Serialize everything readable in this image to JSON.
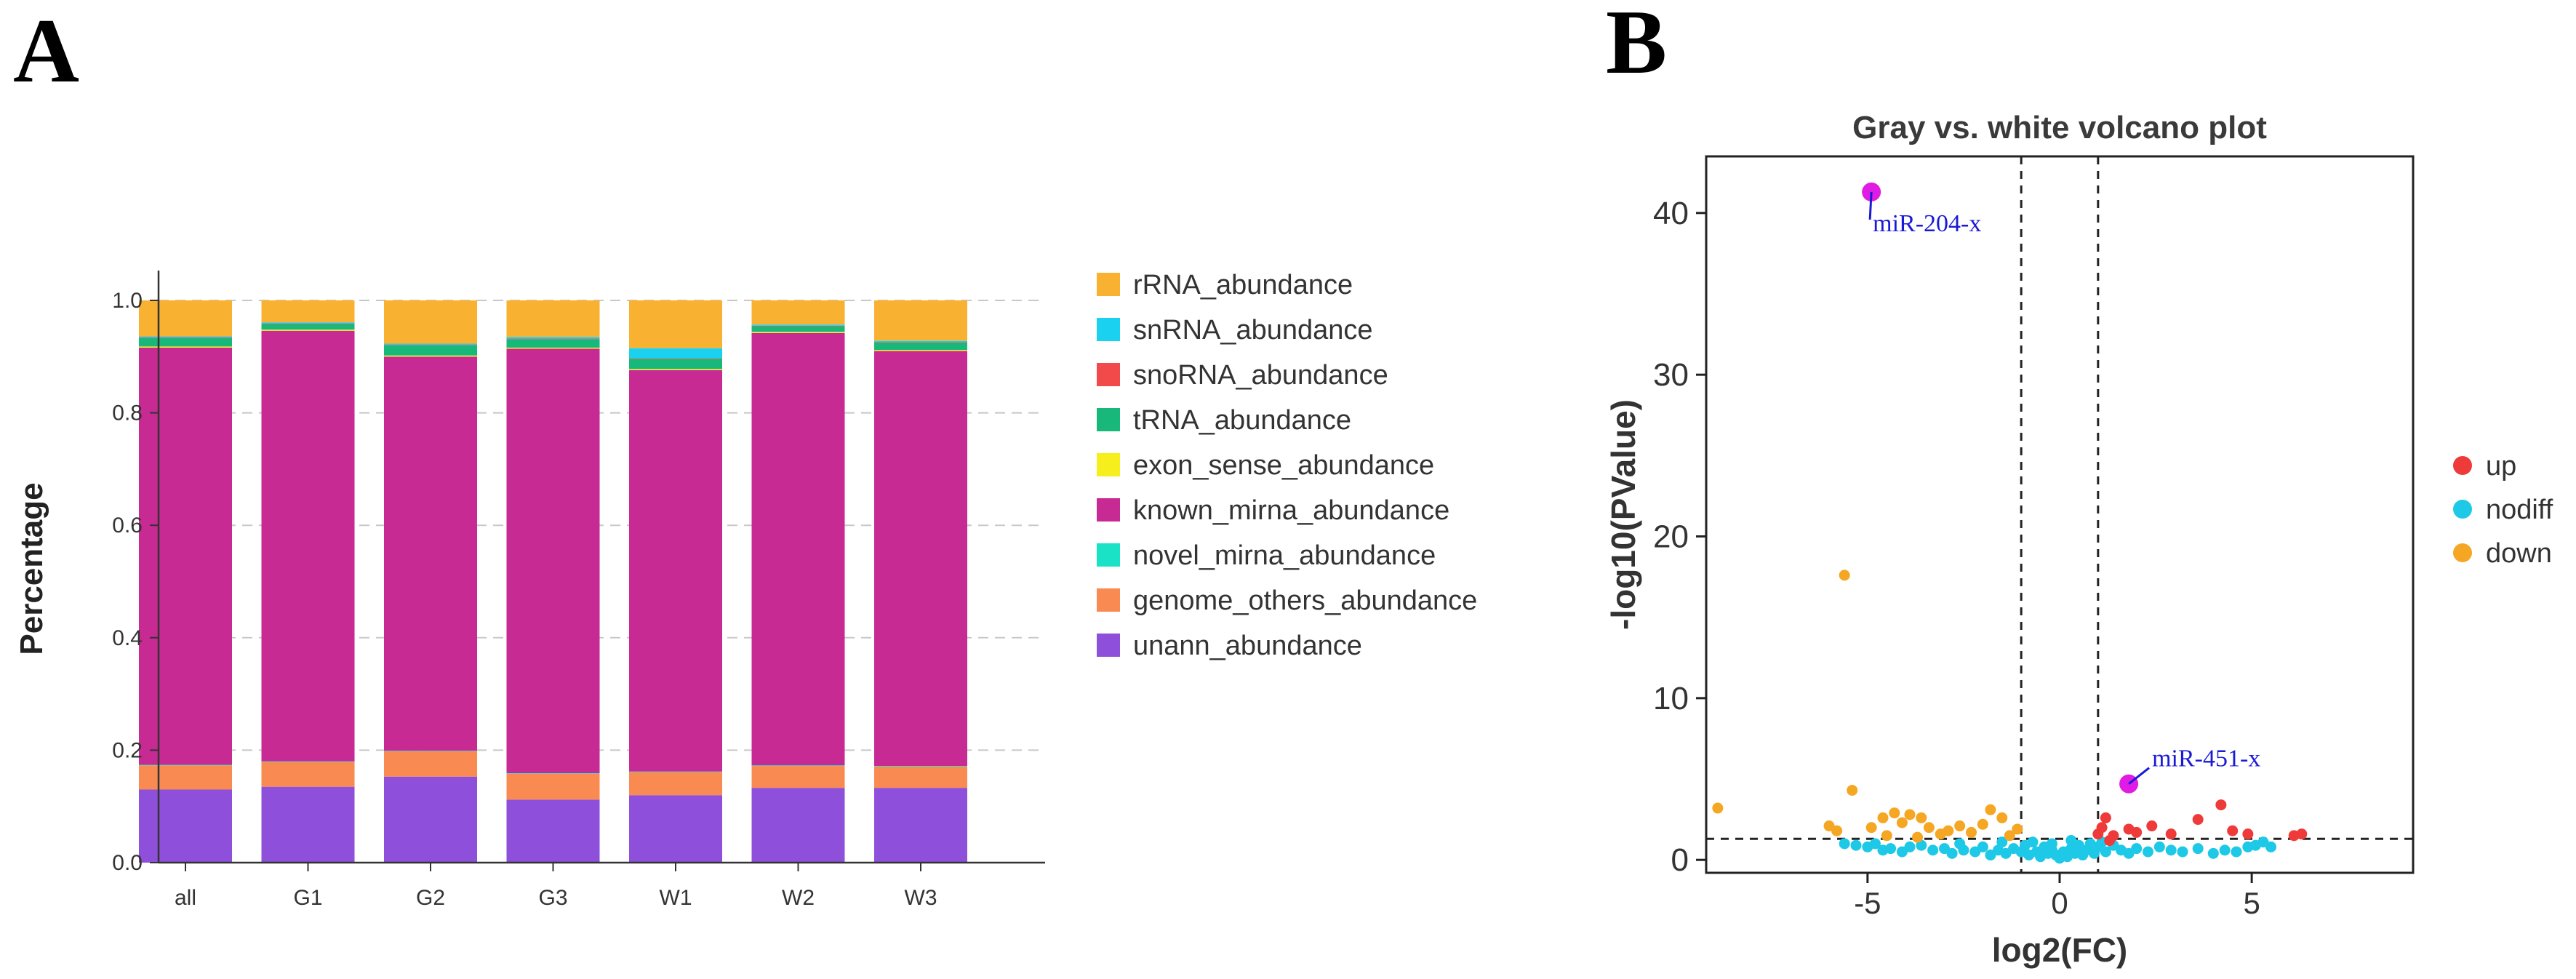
{
  "panels": {
    "a_label": "A",
    "b_label": "B"
  },
  "chart_data": [
    {
      "type": "bar",
      "stacked": true,
      "title": "",
      "xlabel": "",
      "ylabel": "Percentage",
      "ylim": [
        0,
        1.0
      ],
      "yticks": [
        "0.0",
        "0.2",
        "0.4",
        "0.6",
        "0.8",
        "1.0"
      ],
      "grid": "horizontal dashed",
      "legend_position": "right",
      "categories": [
        "all",
        "G1",
        "G2",
        "G3",
        "W1",
        "W2",
        "W3"
      ],
      "series": [
        {
          "name": "unann_abundance",
          "color": "#8e4fdb",
          "values": [
            0.13,
            0.135,
            0.153,
            0.112,
            0.12,
            0.133,
            0.133
          ]
        },
        {
          "name": "genome_others_abundance",
          "color": "#f98b52",
          "values": [
            0.043,
            0.044,
            0.045,
            0.046,
            0.041,
            0.039,
            0.038
          ]
        },
        {
          "name": "novel_mirna_abundance",
          "color": "#19e2c6",
          "values": [
            0.001,
            0.001,
            0.001,
            0.001,
            0.001,
            0.001,
            0.001
          ]
        },
        {
          "name": "known_mirna_abundance",
          "color": "#c82a94",
          "values": [
            0.742,
            0.766,
            0.701,
            0.755,
            0.714,
            0.769,
            0.738
          ]
        },
        {
          "name": "exon_sense_abundance",
          "color": "#f7ee1d",
          "values": [
            0.002,
            0.002,
            0.002,
            0.002,
            0.002,
            0.002,
            0.002
          ]
        },
        {
          "name": "tRNA_abundance",
          "color": "#18b87a",
          "values": [
            0.015,
            0.01,
            0.018,
            0.015,
            0.018,
            0.01,
            0.013
          ]
        },
        {
          "name": "snoRNA_abundance",
          "color": "#f2494a",
          "values": [
            0.001,
            0.001,
            0.001,
            0.001,
            0.001,
            0.001,
            0.001
          ]
        },
        {
          "name": "snRNA_abundance",
          "color": "#1ad1ef",
          "values": [
            0.002,
            0.002,
            0.002,
            0.003,
            0.018,
            0.002,
            0.002
          ]
        },
        {
          "name": "rRNA_abundance",
          "color": "#f9b132",
          "values": [
            0.064,
            0.039,
            0.077,
            0.065,
            0.085,
            0.043,
            0.072
          ]
        }
      ],
      "legend_order": [
        "rRNA_abundance",
        "snRNA_abundance",
        "snoRNA_abundance",
        "tRNA_abundance",
        "exon_sense_abundance",
        "known_mirna_abundance",
        "novel_mirna_abundance",
        "genome_others_abundance",
        "unann_abundance"
      ]
    },
    {
      "type": "scatter",
      "title": "Gray vs. white volcano plot",
      "xlabel": "log2(FC)",
      "ylabel": "-log10(PValue)",
      "xlim": [
        -9.2,
        9.2
      ],
      "ylim": [
        -0.8,
        43.5
      ],
      "xticks": [
        -5,
        0,
        5
      ],
      "yticks": [
        0,
        10,
        20,
        30,
        40
      ],
      "threshold_lines": {
        "x": [
          -1,
          1
        ],
        "y": [
          1.3
        ]
      },
      "legend_position": "right",
      "series": [
        {
          "name": "up",
          "color": "#ef3a3a",
          "points": [
            [
              1.0,
              1.6
            ],
            [
              1.1,
              2.0
            ],
            [
              1.2,
              2.6
            ],
            [
              1.4,
              1.5
            ],
            [
              1.3,
              1.2
            ],
            [
              1.8,
              1.9
            ],
            [
              2.0,
              1.7
            ],
            [
              2.4,
              2.1
            ],
            [
              2.9,
              1.6
            ],
            [
              3.6,
              2.5
            ],
            [
              4.2,
              3.4
            ],
            [
              4.5,
              1.8
            ],
            [
              4.9,
              1.6
            ],
            [
              6.1,
              1.5
            ],
            [
              6.3,
              1.6
            ]
          ]
        },
        {
          "name": "nodiff",
          "color": "#1ec8e7",
          "points": [
            [
              -5.6,
              1.0
            ],
            [
              -5.3,
              0.9
            ],
            [
              -5.0,
              0.8
            ],
            [
              -4.8,
              1.0
            ],
            [
              -4.6,
              0.6
            ],
            [
              -4.4,
              0.7
            ],
            [
              -4.1,
              0.5
            ],
            [
              -3.9,
              0.8
            ],
            [
              -3.6,
              0.9
            ],
            [
              -3.3,
              0.6
            ],
            [
              -3.0,
              0.7
            ],
            [
              -2.8,
              0.4
            ],
            [
              -2.5,
              0.6
            ],
            [
              -2.2,
              0.5
            ],
            [
              -2.0,
              0.8
            ],
            [
              -1.8,
              0.3
            ],
            [
              -1.6,
              0.6
            ],
            [
              -1.4,
              0.4
            ],
            [
              -1.2,
              0.7
            ],
            [
              -1.0,
              0.5
            ],
            [
              -0.9,
              0.9
            ],
            [
              -0.8,
              0.3
            ],
            [
              -0.7,
              1.1
            ],
            [
              -0.6,
              0.5
            ],
            [
              -0.5,
              0.2
            ],
            [
              -0.4,
              0.8
            ],
            [
              -0.3,
              0.4
            ],
            [
              -0.2,
              0.6
            ],
            [
              -0.1,
              0.3
            ],
            [
              0.0,
              0.1
            ],
            [
              0.1,
              0.5
            ],
            [
              0.2,
              0.2
            ],
            [
              0.3,
              0.7
            ],
            [
              0.4,
              0.4
            ],
            [
              0.5,
              0.9
            ],
            [
              0.6,
              0.3
            ],
            [
              0.7,
              0.6
            ],
            [
              0.8,
              1.0
            ],
            [
              0.9,
              0.4
            ],
            [
              1.0,
              0.8
            ],
            [
              1.2,
              0.5
            ],
            [
              1.4,
              0.9
            ],
            [
              1.6,
              0.6
            ],
            [
              1.8,
              0.4
            ],
            [
              2.0,
              0.7
            ],
            [
              2.3,
              0.5
            ],
            [
              2.6,
              0.8
            ],
            [
              2.9,
              0.6
            ],
            [
              3.2,
              0.5
            ],
            [
              3.6,
              0.7
            ],
            [
              4.0,
              0.4
            ],
            [
              4.3,
              0.6
            ],
            [
              4.6,
              0.5
            ],
            [
              4.9,
              0.8
            ],
            [
              5.1,
              0.9
            ],
            [
              5.3,
              1.1
            ],
            [
              5.5,
              0.8
            ],
            [
              -1.5,
              1.1
            ],
            [
              -2.6,
              1.0
            ],
            [
              0.3,
              1.2
            ],
            [
              1.1,
              1.1
            ],
            [
              -0.2,
              1.0
            ]
          ]
        },
        {
          "name": "down",
          "color": "#f5a623",
          "points": [
            [
              -8.9,
              3.2
            ],
            [
              -6.0,
              2.1
            ],
            [
              -5.8,
              1.8
            ],
            [
              -5.6,
              17.6
            ],
            [
              -5.4,
              4.3
            ],
            [
              -4.9,
              2.0
            ],
            [
              -4.6,
              2.6
            ],
            [
              -4.3,
              2.9
            ],
            [
              -4.1,
              2.3
            ],
            [
              -3.9,
              2.8
            ],
            [
              -3.6,
              2.6
            ],
            [
              -3.4,
              2.0
            ],
            [
              -3.1,
              1.6
            ],
            [
              -2.9,
              1.8
            ],
            [
              -2.6,
              2.1
            ],
            [
              -2.3,
              1.7
            ],
            [
              -2.0,
              2.2
            ],
            [
              -1.8,
              3.1
            ],
            [
              -1.5,
              2.6
            ],
            [
              -1.3,
              1.5
            ],
            [
              -1.1,
              1.9
            ],
            [
              -3.7,
              1.4
            ],
            [
              -4.5,
              1.5
            ]
          ]
        }
      ],
      "highlight_color": "#e01be3",
      "annotations": [
        {
          "label": "miR-204-x",
          "x": -4.9,
          "y": 41.3,
          "color": "#1a1ad6"
        },
        {
          "label": "miR-451-x",
          "x": 1.8,
          "y": 4.7,
          "color": "#1a1ad6"
        }
      ]
    }
  ]
}
